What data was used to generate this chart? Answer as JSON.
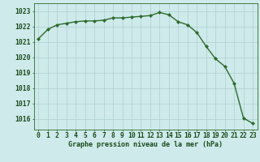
{
  "x": [
    0,
    1,
    2,
    3,
    4,
    5,
    6,
    7,
    8,
    9,
    10,
    11,
    12,
    13,
    14,
    15,
    16,
    17,
    18,
    19,
    20,
    21,
    22,
    23
  ],
  "y": [
    1021.2,
    1021.8,
    1022.1,
    1022.2,
    1022.3,
    1022.35,
    1022.35,
    1022.4,
    1022.55,
    1022.55,
    1022.6,
    1022.65,
    1022.7,
    1022.9,
    1022.75,
    1022.3,
    1022.1,
    1021.6,
    1020.7,
    1019.9,
    1019.4,
    1018.3,
    1016.05,
    1015.7
  ],
  "line_color": "#2d6a2d",
  "marker": "D",
  "marker_size": 2.2,
  "bg_color": "#ceeaea",
  "grid_color": "#aed0d0",
  "ylabel_ticks": [
    1016,
    1017,
    1018,
    1019,
    1020,
    1021,
    1022,
    1023
  ],
  "xlabel": "Graphe pression niveau de la mer (hPa)",
  "ylim": [
    1015.3,
    1023.5
  ],
  "xlim": [
    -0.5,
    23.5
  ],
  "title_color": "#1a4a1a",
  "xlabel_fontsize": 6.0,
  "tick_fontsize": 5.8,
  "line_width": 1.0
}
